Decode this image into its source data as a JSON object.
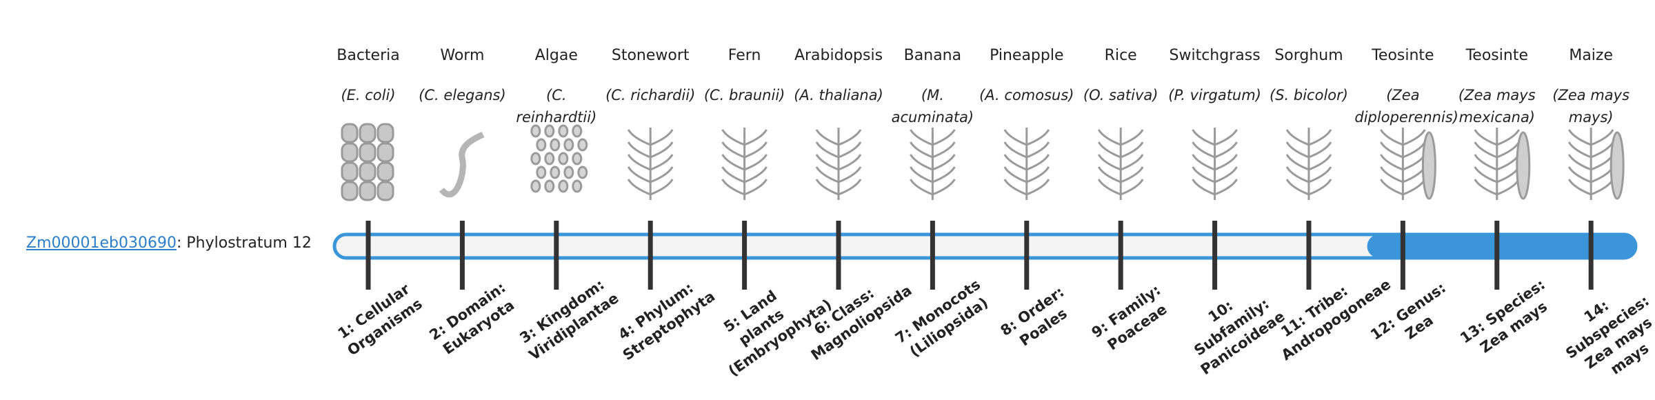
{
  "gene": {
    "id": "Zm00001eb030690",
    "separator": ":",
    "stratum_label": "Phylostratum",
    "stratum": 12
  },
  "columns": [
    {
      "name": "Bacteria",
      "species": "(E. coli)",
      "stratum": "1: Cellular Organisms"
    },
    {
      "name": "Worm",
      "species": "(C. elegans)",
      "stratum": "2: Domain: Eukaryota"
    },
    {
      "name": "Algae",
      "species": "(C. reinhardtii)",
      "stratum": "3: Kingdom: Viridiplantae"
    },
    {
      "name": "Stonewort",
      "species": "(C. richardii)",
      "stratum": "4: Phylum: Streptophyta"
    },
    {
      "name": "Fern",
      "species": "(C. braunii)",
      "stratum": "5: Land plants (Embryophyta)"
    },
    {
      "name": "Arabidopsis",
      "species": "(A. thaliana)",
      "stratum": "6: Class: Magnoliopsida"
    },
    {
      "name": "Banana",
      "species": "(M. acuminata)",
      "stratum": "7: Monocots (Liliopsida)"
    },
    {
      "name": "Pineapple",
      "species": "(A. comosus)",
      "stratum": "8: Order: Poales"
    },
    {
      "name": "Rice",
      "species": "(O. sativa)",
      "stratum": "9: Family: Poaceae"
    },
    {
      "name": "Switchgrass",
      "species": "(P. virgatum)",
      "stratum": "10: Subfamily: Panicoideae"
    },
    {
      "name": "Sorghum",
      "species": "(S. bicolor)",
      "stratum": "11: Tribe: Andropogoneae"
    },
    {
      "name": "Teosinte",
      "species": "(Zea diploperennis)",
      "stratum": "12: Genus: Zea"
    },
    {
      "name": "Teosinte",
      "species": "(Zea mays mexicana)",
      "stratum": "13: Species: Zea mays"
    },
    {
      "name": "Maize",
      "species": "(Zea mays mays)",
      "stratum": "14: Subspecies: Zea mays mays"
    }
  ]
}
